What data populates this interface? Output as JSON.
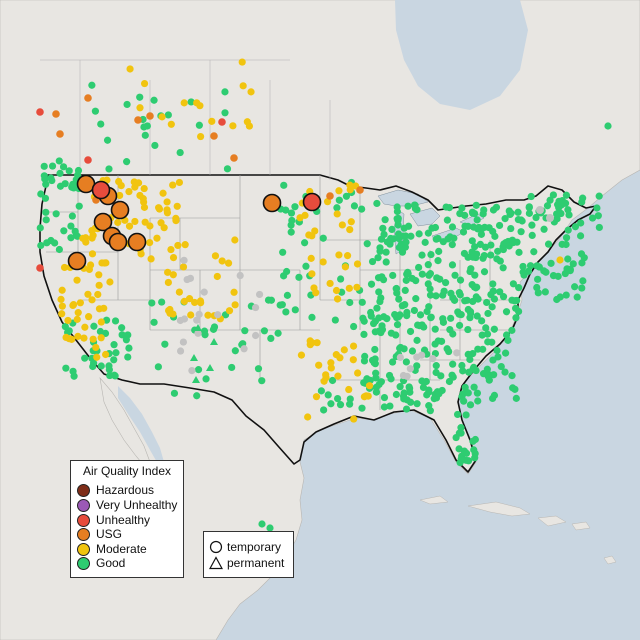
{
  "map": {
    "colors": {
      "ocean": "#c9d6e1",
      "land": "#e8e6e2",
      "border": "#111111",
      "state": "#9a9a9a"
    }
  },
  "legend": {
    "title": "Air Quality Index",
    "items": [
      {
        "label": "Hazardous",
        "color": "#7e2d18"
      },
      {
        "label": "Very Unhealthy",
        "color": "#9b59b6"
      },
      {
        "label": "Unhealthy",
        "color": "#e74c3c"
      },
      {
        "label": "USG",
        "color": "#e67e22"
      },
      {
        "label": "Moderate",
        "color": "#f1c40f"
      },
      {
        "label": "Good",
        "color": "#2ecc71"
      }
    ],
    "no_data_color": "#c2c2c2"
  },
  "type_legend": {
    "items": [
      {
        "label": "temporary",
        "symbol": "circle"
      },
      {
        "label": "permanent",
        "symbol": "triangle"
      }
    ]
  }
}
